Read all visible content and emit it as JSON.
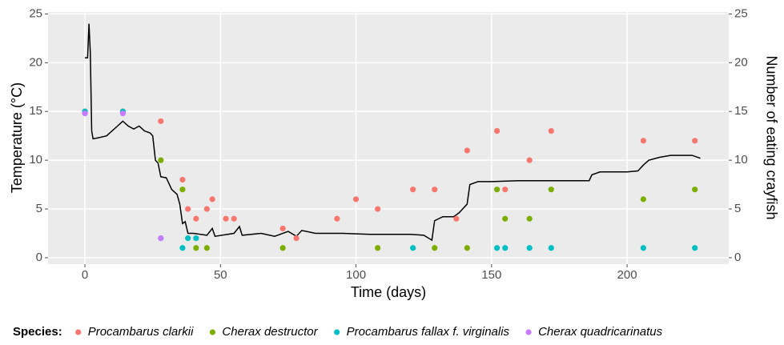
{
  "chart_data": {
    "type": "scatter",
    "xlabel": "Time (days)",
    "ylabel": "Temperature (°C)",
    "y2label": "Number of eating crayfish",
    "legend_title": "Species:",
    "legend_position": "bottom",
    "grid": true,
    "xlim": [
      -13.6,
      237.5
    ],
    "xticks": [
      0,
      50,
      100,
      150,
      200
    ],
    "ylim": [
      -0.66,
      25.2
    ],
    "yticks": [
      0,
      5,
      10,
      15,
      20,
      25
    ],
    "y2lim": [
      -0.66,
      25.2
    ],
    "y2ticks": [
      0,
      5,
      10,
      15,
      20,
      25
    ],
    "temperature": {
      "color": "#000000",
      "x": [
        0,
        1,
        1.5,
        2,
        2.5,
        3,
        5,
        8,
        10,
        12,
        14,
        16,
        18,
        20,
        22,
        24,
        25,
        26,
        27,
        28,
        30,
        32,
        34,
        35,
        36,
        37,
        38,
        40,
        45,
        47,
        48,
        55,
        57,
        58,
        65,
        70,
        75,
        78,
        80,
        85,
        95,
        105,
        115,
        120,
        125,
        128,
        129,
        132,
        136,
        138,
        141,
        142,
        145,
        150,
        160,
        170,
        180,
        186,
        187,
        190,
        200,
        204,
        206,
        208,
        212,
        216,
        220,
        224,
        227
      ],
      "values": [
        20.5,
        20.5,
        24,
        21,
        13,
        12.2,
        12.3,
        12.5,
        13,
        13.5,
        14,
        13.5,
        13.2,
        13.5,
        13,
        12.8,
        12.5,
        10,
        9.7,
        8.3,
        8.2,
        7,
        6.5,
        5.5,
        3.5,
        3.7,
        2.5,
        2.5,
        2.3,
        3,
        2.2,
        2.5,
        3.2,
        2.3,
        2.5,
        2.2,
        2.7,
        2.2,
        2.8,
        2.5,
        2.5,
        2.4,
        2.4,
        2.4,
        2.3,
        1.8,
        3.8,
        4.2,
        4.2,
        4.6,
        5.5,
        7.5,
        7.8,
        7.8,
        7.9,
        7.9,
        7.9,
        7.9,
        8.5,
        8.8,
        8.8,
        8.9,
        9.5,
        10,
        10.3,
        10.5,
        10.5,
        10.5,
        10.2
      ]
    },
    "series": [
      {
        "name": "Procambarus clarkii",
        "color": "#F8766D",
        "axis": "y2",
        "x": [
          0,
          14,
          28,
          36,
          38,
          41,
          45,
          47,
          52,
          55,
          73,
          78,
          93,
          100,
          108,
          121,
          129,
          137,
          141,
          152,
          155,
          164,
          172,
          206,
          225
        ],
        "values": [
          15,
          15,
          14,
          8,
          5,
          4,
          5,
          6,
          4,
          4,
          3,
          2,
          4,
          6,
          5,
          7,
          7,
          4,
          11,
          13,
          7,
          10,
          13,
          12,
          12
        ]
      },
      {
        "name": "Cherax destructor",
        "color": "#7CAE00",
        "axis": "y2",
        "x": [
          0,
          14,
          28,
          36,
          41,
          45,
          73,
          108,
          129,
          141,
          152,
          155,
          164,
          172,
          206,
          225
        ],
        "values": [
          15,
          15,
          10,
          7,
          1,
          1,
          1,
          1,
          1,
          1,
          7,
          4,
          4,
          7,
          6,
          7
        ]
      },
      {
        "name": "Procambarus fallax f. virginalis",
        "color": "#00BFC4",
        "axis": "y2",
        "x": [
          0,
          14,
          28,
          36,
          38,
          41,
          121,
          152,
          155,
          164,
          172,
          206,
          225
        ],
        "values": [
          15,
          15,
          2,
          1,
          2,
          2,
          1,
          1,
          1,
          1,
          1,
          1,
          1
        ]
      },
      {
        "name": "Cherax quadricarinatus",
        "color": "#C77CFF",
        "axis": "y2",
        "x": [
          0,
          14,
          28
        ],
        "values": [
          14.8,
          14.8,
          2
        ]
      }
    ]
  }
}
